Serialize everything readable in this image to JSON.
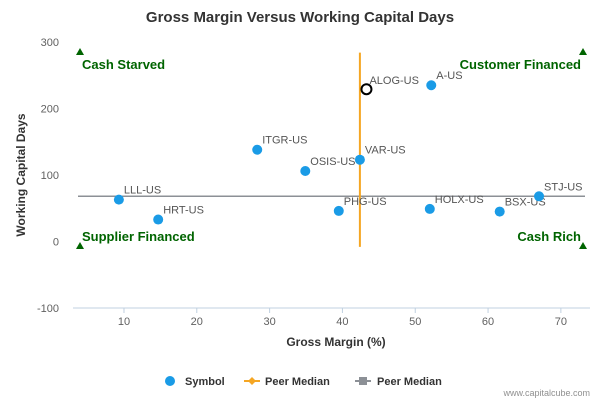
{
  "chart_data": {
    "type": "scatter",
    "title": "Gross Margin Versus Working Capital Days",
    "xlabel": "Gross Margin (%)",
    "ylabel": "Working Capital Days",
    "xlim": [
      3,
      74
    ],
    "ylim": [
      -100,
      300
    ],
    "xticks": [
      10,
      20,
      30,
      40,
      50,
      60,
      70
    ],
    "yticks": [
      -100,
      0,
      100,
      200,
      300
    ],
    "grid": false,
    "legend_position": "bottom",
    "series": [
      {
        "name": "Symbol",
        "color": "#1a9be6",
        "points": [
          {
            "label": "A-US",
            "x": 52.2,
            "y": 235
          },
          {
            "label": "ITGR-US",
            "x": 28.3,
            "y": 138
          },
          {
            "label": "VAR-US",
            "x": 42.4,
            "y": 123
          },
          {
            "label": "OSIS-US",
            "x": 34.9,
            "y": 106
          },
          {
            "label": "LLL-US",
            "x": 9.3,
            "y": 63
          },
          {
            "label": "HRT-US",
            "x": 14.7,
            "y": 33
          },
          {
            "label": "PHG-US",
            "x": 39.5,
            "y": 46
          },
          {
            "label": "HOLX-US",
            "x": 52.0,
            "y": 49
          },
          {
            "label": "BSX-US",
            "x": 61.6,
            "y": 45
          },
          {
            "label": "STJ-US",
            "x": 67.0,
            "y": 68
          }
        ]
      }
    ],
    "highlight": {
      "label": "ALOG-US",
      "x": 43.3,
      "y": 229
    },
    "peer_median_vertical": {
      "name": "Peer Median",
      "x": 42.4,
      "y_range": [
        -8,
        284
      ],
      "color": "#f5a623"
    },
    "peer_median_horizontal": {
      "name": "Peer Median",
      "y": 68,
      "color": "#8c9096"
    },
    "quadrant_labels": {
      "top_left": "Cash Starved",
      "top_right": "Customer Financed",
      "bottom_left": "Supplier Financed",
      "bottom_right": "Cash Rich"
    }
  },
  "credit": "www.capitalcube.com"
}
